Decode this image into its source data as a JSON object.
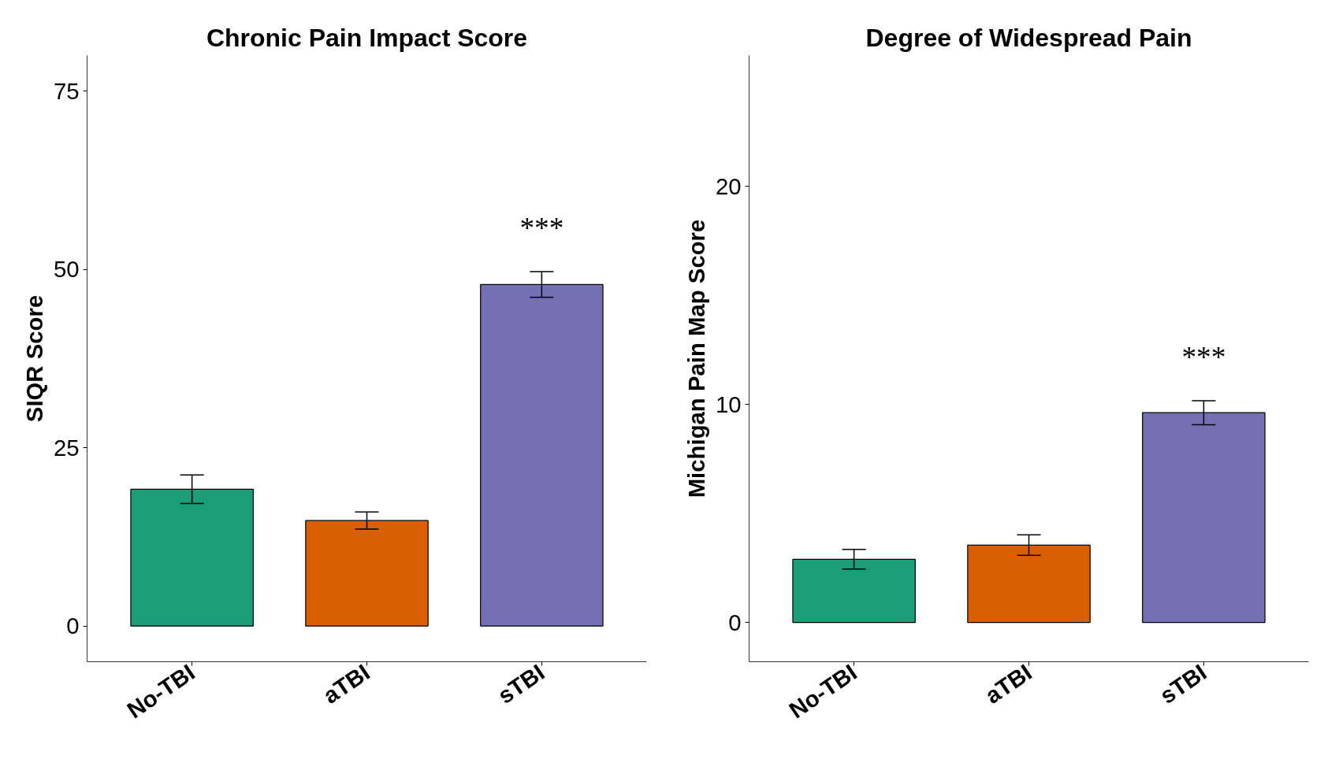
{
  "chart_data": [
    {
      "type": "bar",
      "title": "Chronic Pain Impact Score",
      "ylabel": "SIQR Score",
      "categories": [
        "No-TBI",
        "aTBI",
        "sTBI"
      ],
      "values": [
        19.2,
        14.8,
        47.9
      ],
      "errors": [
        2.0,
        1.2,
        1.8
      ],
      "colors": [
        "#1b9e77",
        "#d95f02",
        "#7570b3"
      ],
      "ylim": [
        -5,
        80
      ],
      "yticks": [
        0,
        25,
        50,
        75
      ],
      "grid": false,
      "annotations": [
        "***"
      ]
    },
    {
      "type": "bar",
      "title": "Degree of Widespread Pain",
      "ylabel": "Michigan Pain Map Score",
      "categories": [
        "No-TBI",
        "aTBI",
        "sTBI"
      ],
      "values": [
        2.9,
        3.55,
        9.62
      ],
      "errors": [
        0.45,
        0.47,
        0.55
      ],
      "colors": [
        "#1b9e77",
        "#d95f02",
        "#7570b3"
      ],
      "ylim": [
        -1.8,
        26
      ],
      "yticks": [
        0,
        10,
        20
      ],
      "grid": false,
      "annotations": [
        "***"
      ]
    }
  ]
}
